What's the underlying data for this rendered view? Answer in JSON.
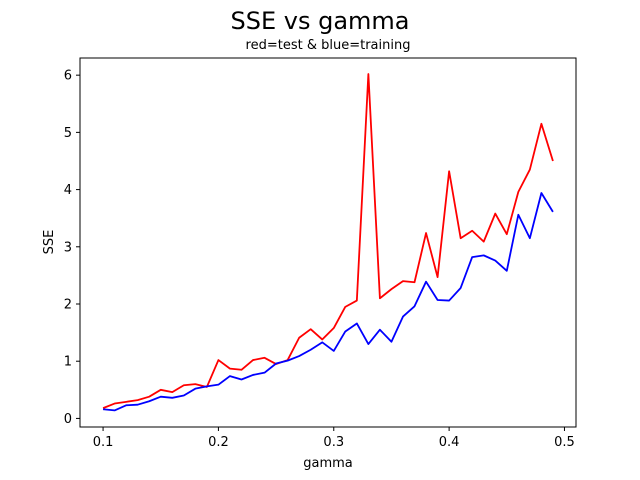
{
  "chart_data": {
    "type": "line",
    "title": "SSE vs gamma",
    "subtitle": "red=test & blue=training",
    "xlabel": "gamma",
    "ylabel": "SSE",
    "xlim": [
      0.08,
      0.51
    ],
    "ylim": [
      -0.15,
      6.3
    ],
    "x_ticks": [
      0.1,
      0.2,
      0.3,
      0.4,
      0.5
    ],
    "x_tick_labels": [
      "0.1",
      "0.2",
      "0.3",
      "0.4",
      "0.5"
    ],
    "y_ticks": [
      0,
      1,
      2,
      3,
      4,
      5,
      6
    ],
    "y_tick_labels": [
      "0",
      "1",
      "2",
      "3",
      "4",
      "5",
      "6"
    ],
    "grid": false,
    "x": [
      0.1,
      0.11,
      0.12,
      0.13,
      0.14,
      0.15,
      0.16,
      0.17,
      0.18,
      0.19,
      0.2,
      0.21,
      0.22,
      0.23,
      0.24,
      0.25,
      0.26,
      0.27,
      0.28,
      0.29,
      0.3,
      0.31,
      0.32,
      0.33,
      0.34,
      0.35,
      0.36,
      0.37,
      0.38,
      0.39,
      0.4,
      0.41,
      0.42,
      0.43,
      0.44,
      0.45,
      0.46,
      0.47,
      0.48,
      0.49
    ],
    "series": [
      {
        "color": "#ff0000",
        "values": [
          0.18,
          0.26,
          0.29,
          0.32,
          0.38,
          0.5,
          0.46,
          0.58,
          0.6,
          0.55,
          1.02,
          0.87,
          0.85,
          1.02,
          1.06,
          0.95,
          1.02,
          1.41,
          1.56,
          1.38,
          1.58,
          1.95,
          2.06,
          6.02,
          2.1,
          2.26,
          2.4,
          2.38,
          3.24,
          2.47,
          4.32,
          3.15,
          3.28,
          3.09,
          3.58,
          3.22,
          3.96,
          4.35,
          5.15,
          4.5
        ]
      },
      {
        "color": "#0000ff",
        "values": [
          0.16,
          0.14,
          0.23,
          0.24,
          0.3,
          0.38,
          0.36,
          0.4,
          0.52,
          0.56,
          0.59,
          0.74,
          0.68,
          0.76,
          0.8,
          0.96,
          1.01,
          1.09,
          1.2,
          1.33,
          1.18,
          1.52,
          1.66,
          1.3,
          1.55,
          1.34,
          1.78,
          1.96,
          2.39,
          2.07,
          2.06,
          2.28,
          2.82,
          2.85,
          2.76,
          2.58,
          3.56,
          3.15,
          3.94,
          3.61
        ]
      }
    ]
  }
}
